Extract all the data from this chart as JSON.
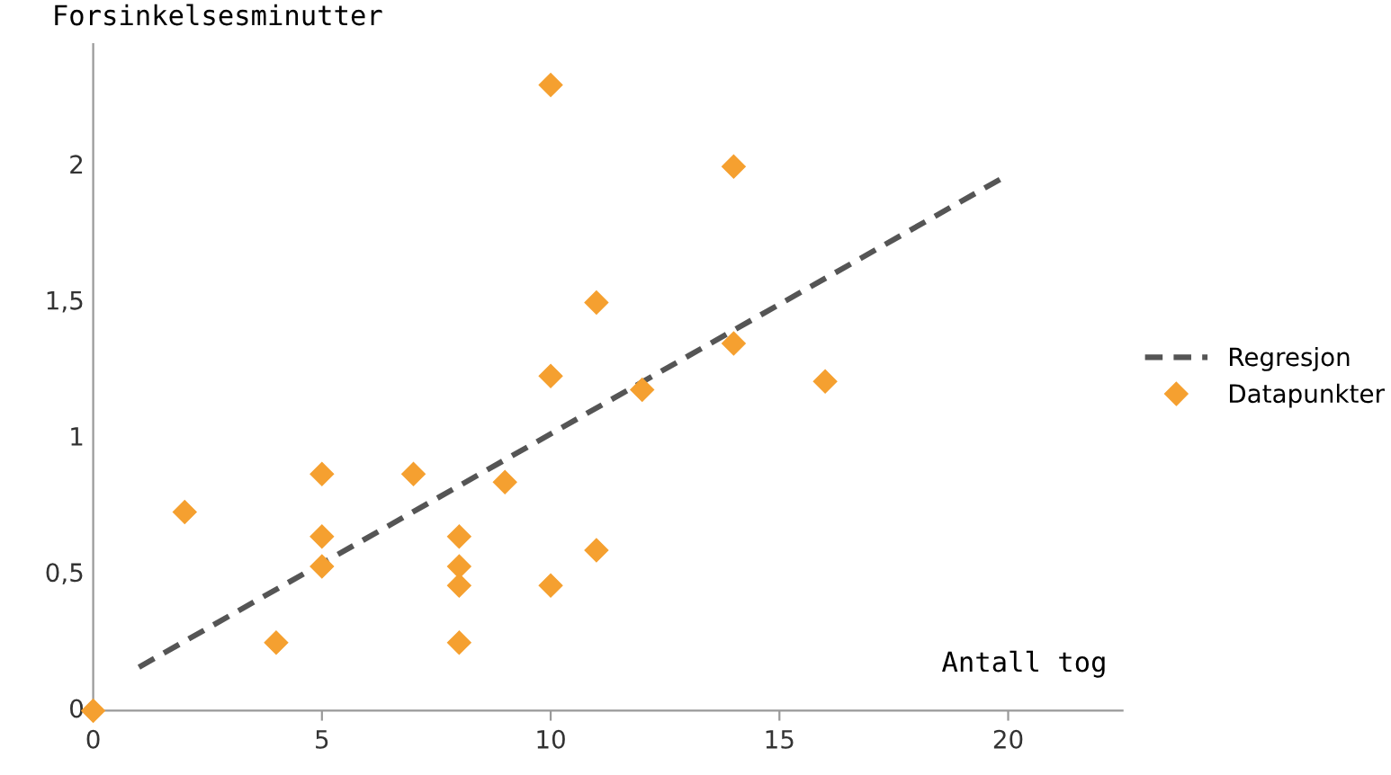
{
  "chart_data": {
    "type": "scatter",
    "xlabel": "Antall tog",
    "ylabel": "Forsinkelsesminutter",
    "xlim": [
      0,
      22.5
    ],
    "ylim": [
      0,
      2.45
    ],
    "xticks": [
      0,
      5,
      10,
      15,
      20
    ],
    "yticks": [
      0,
      {
        "value": 0.5,
        "label": "0,5"
      },
      1,
      {
        "value": 1.5,
        "label": "1,5"
      },
      2
    ],
    "grid": false,
    "legend": "right",
    "series": [
      {
        "name": "Regresjon",
        "type": "line",
        "color": "#555555",
        "line_style": "dashed",
        "marker": "none",
        "x": [
          1,
          20
        ],
        "values": [
          0.16,
          1.97
        ]
      },
      {
        "name": "Datapunkter",
        "color": "#f5a030",
        "marker": "diamond",
        "x": [
          0,
          2,
          4,
          5,
          5,
          5,
          7,
          8,
          8,
          8,
          8,
          9,
          10,
          10,
          10,
          11,
          11,
          12,
          14,
          14,
          16
        ],
        "values": [
          0,
          0.73,
          0.25,
          0.87,
          0.64,
          0.53,
          0.87,
          0.64,
          0.53,
          0.46,
          0.25,
          0.84,
          2.3,
          1.23,
          0.46,
          1.5,
          0.59,
          1.18,
          2.0,
          1.35,
          1.21
        ]
      }
    ]
  }
}
